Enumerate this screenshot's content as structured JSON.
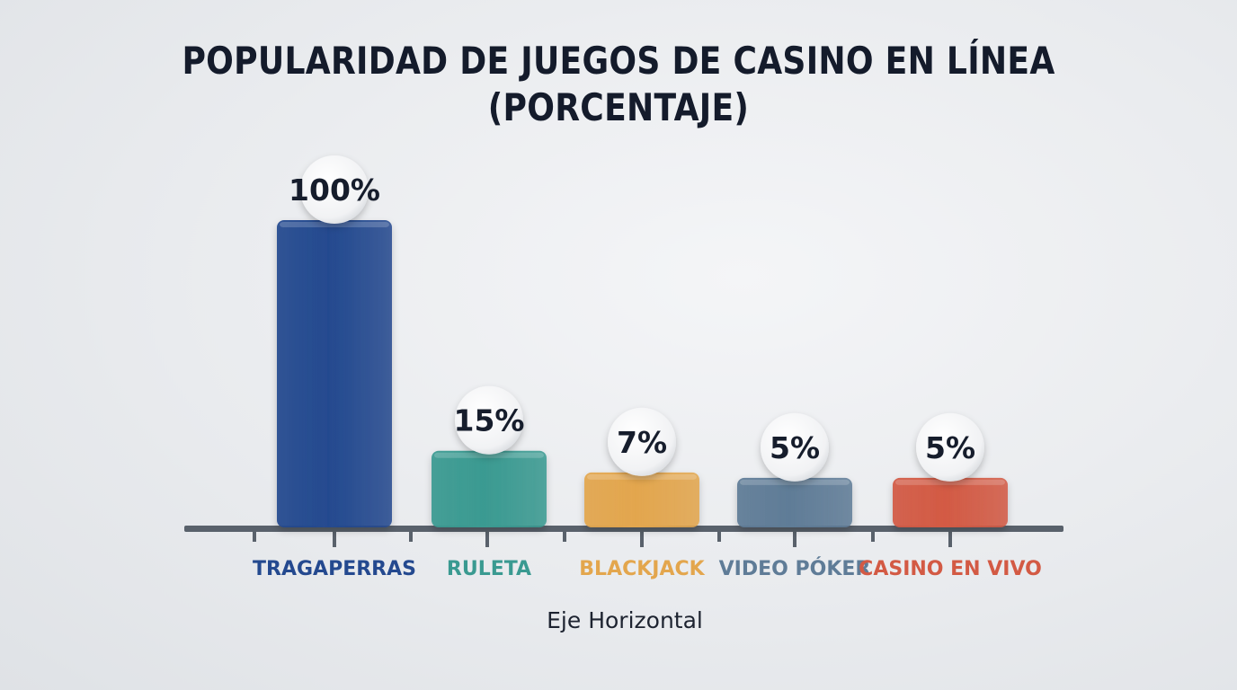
{
  "chart_data": {
    "type": "bar",
    "title_lines": [
      "POPULARIDAD DE JUEGOS DE CASINO EN LÍNEA",
      "(PORCENTAJE)"
    ],
    "xlabel": "Eje Horizontal",
    "ylabel": "",
    "ylim": [
      0,
      100
    ],
    "grid": false,
    "categories": [
      "TRAGAPERRAS",
      "RULETA",
      "BLACKJACK",
      "VIDEO PÓKER",
      "CASINO EN VIVO"
    ],
    "values": [
      100,
      15,
      7,
      5,
      5
    ],
    "value_labels": [
      "100%",
      "15%",
      "7%",
      "5%",
      "5%"
    ],
    "colors": [
      "#24498f",
      "#3a9a91",
      "#e3a64d",
      "#5f7c97",
      "#d35a44"
    ],
    "axis_color": "#59616b"
  }
}
